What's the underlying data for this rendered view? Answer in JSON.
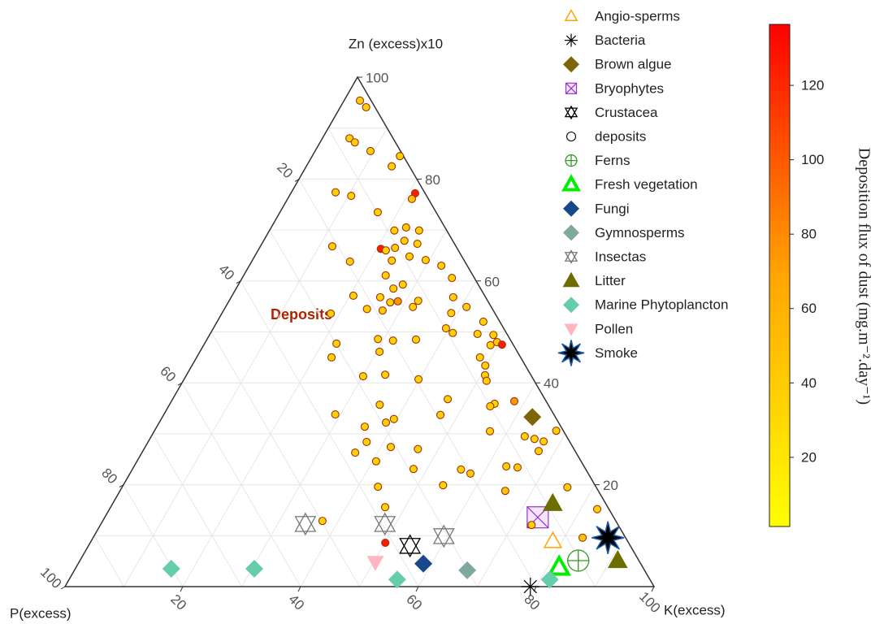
{
  "chart_data": {
    "type": "ternary",
    "top_label": "Zn (excess)x10",
    "left_label": "P(excess)",
    "right_label": "K(excess)",
    "annotation": "Deposits",
    "annotation_color": "#b22200",
    "zn_ticks": [
      20,
      40,
      60,
      80,
      100
    ],
    "p_ticks": [
      20,
      40,
      60,
      80,
      100
    ],
    "k_ticks": [
      20,
      40,
      60,
      80,
      100
    ],
    "grid": [
      10,
      20,
      30,
      40,
      50,
      60,
      70,
      80,
      90
    ],
    "colorbar": {
      "title": "Deposition flux of dust (mg.m⁻².day⁻¹)",
      "clim": [
        1.4,
        136.4
      ],
      "ticks": [
        20,
        40,
        60,
        80,
        100,
        120
      ],
      "colors": [
        "#ffff00",
        "#ffa500",
        "#ff0000"
      ]
    },
    "series": [
      {
        "name": "Angio-sperms",
        "marker": "triangle-open",
        "color": "#ffa500",
        "k": [
          78.4
        ],
        "zn": [
          8.9
        ]
      },
      {
        "name": "Bacteria",
        "marker": "asterisk",
        "color": "#000000",
        "k": [
          79
        ],
        "zn": [
          0
        ]
      },
      {
        "name": "Brown algue",
        "marker": "diamond",
        "color": "#7d6608",
        "k": [
          62.8
        ],
        "zn": [
          33.3
        ]
      },
      {
        "name": "Bryophytes",
        "marker": "square-x",
        "color": "#9932cc",
        "k": [
          73.5
        ],
        "zn": [
          13.6
        ]
      },
      {
        "name": "Crustacea",
        "marker": "hexagram",
        "color": "#000000",
        "k": [
          54.6
        ],
        "zn": [
          8.0
        ]
      },
      {
        "name": "deposits",
        "marker": "circle",
        "color": "#000000",
        "k": [
          2.7,
          4.4,
          4.6,
          5.9,
          9.4,
          14.9,
          14.5,
          7.5,
          10.5,
          21.1,
          21.1,
          16.6,
          21.2,
          22.9,
          25.4,
          12.2,
          20.7,
          21.7,
          23.0,
          23.9,
          26.4,
          16.7,
          26.3,
          23.7,
          29.4,
          32.6,
          35.6,
          24.1,
          26.7,
          27.9,
          27.5,
          28.7,
          25.3,
          32.1,
          31.8,
          24.2,
          20.6,
          37.7,
          38.9,
          40.9,
          45.2,
          27.0,
          45.4,
          18.5,
          39.5,
          41.1,
          48.2,
          22.4,
          29.0,
          31.7,
          35.5,
          48.7,
          49.5,
          50.6,
          22.9,
          30.5,
          48.1,
          49.8,
          30.1,
          33.7,
          50.7,
          51.5,
          39.8,
          58.2,
          46.7,
          55.1,
          54.6,
          29.1,
          35.7,
          39.5,
          38.5,
          47.0,
          57.0,
          63.4,
          65.3,
          67.1,
          67.2,
          68.2,
          35.3,
          37.1,
          36.2,
          41.7,
          46.5,
          40.6,
          55.8,
          57.8,
          63.2,
          65.2,
          54.3,
          47.7,
          43.4,
          65.4,
          75.6,
          82.8,
          73.2,
          83.1,
          46.6,
          37.3,
          50.1
        ],
        "zn": [
          95.4,
          94.1,
          88.0,
          87.2,
          85.5,
          84.5,
          82.5,
          77.4,
          76.7,
          77.2,
          76.1,
          73.5,
          69.9,
          70.5,
          69.9,
          66.8,
          66.3,
          66.0,
          66.5,
          67.9,
          67.3,
          63.8,
          64.8,
          64.0,
          64.1,
          63.0,
          60.6,
          61.1,
          58.5,
          59.3,
          55.8,
          56.0,
          56.8,
          56.1,
          54.9,
          54.5,
          57.1,
          56.8,
          53.7,
          54.9,
          52.0,
          54.2,
          49.6,
          53.6,
          50.7,
          49.8,
          49.4,
          47.7,
          48.6,
          48.3,
          48.5,
          47.4,
          48.0,
          47.5,
          45.0,
          46.1,
          45.0,
          43.4,
          41.3,
          41.6,
          41.5,
          40.4,
          40.7,
          36.4,
          36.8,
          35.9,
          35.4,
          33.8,
          35.7,
          32.9,
          32.2,
          33.7,
          30.5,
          29.5,
          29.0,
          28.5,
          26.6,
          30.6,
          31.4,
          28.4,
          26.3,
          27.4,
          27.0,
          24.6,
          23.0,
          22.2,
          23.6,
          23.4,
          19.9,
          23.1,
          19.6,
          18.8,
          19.5,
          15.2,
          12.1,
          9.6,
          15.6,
          12.9,
          8.6
        ],
        "flux": [
          35,
          35,
          35,
          35,
          35,
          35,
          35,
          35,
          35,
          125,
          45,
          35,
          35,
          40,
          35,
          35,
          125,
          35,
          40,
          35,
          35,
          35,
          35,
          35,
          35,
          35,
          35,
          35,
          35,
          35,
          35,
          75,
          35,
          35,
          35,
          35,
          35,
          35,
          35,
          35,
          35,
          40,
          35,
          35,
          35,
          35,
          35,
          35,
          35,
          35,
          35,
          35,
          40,
          125,
          35,
          35,
          35,
          35,
          35,
          35,
          35,
          35,
          35,
          75,
          35,
          35,
          35,
          35,
          35,
          35,
          35,
          35,
          35,
          35,
          35,
          35,
          35,
          35,
          35,
          35,
          35,
          35,
          35,
          35,
          35,
          40,
          35,
          40,
          35,
          35,
          35,
          45,
          35,
          35,
          35,
          45,
          35,
          35,
          125
        ]
      },
      {
        "name": "Ferns",
        "marker": "circle-plus",
        "color": "#339922",
        "k": [
          84.6
        ],
        "zn": [
          5.1
        ]
      },
      {
        "name": "Fresh vegetation",
        "marker": "triangle-thick",
        "color": "#00ee00",
        "k": [
          82
        ],
        "zn": [
          3.8
        ]
      },
      {
        "name": "Fungi",
        "marker": "diamond",
        "color": "#17488a",
        "k": [
          58.6
        ],
        "zn": [
          4.5
        ]
      },
      {
        "name": "Gymnosperms",
        "marker": "diamond",
        "color": "#7fa8a0",
        "k": [
          66.7
        ],
        "zn": [
          3.2
        ]
      },
      {
        "name": "Insectas",
        "marker": "hexagram",
        "color": "#777777",
        "k": [
          34.7,
          48.2,
          59.4
        ],
        "zn": [
          12.3,
          12.3,
          9.9
        ]
      },
      {
        "name": "Litter",
        "marker": "triangle",
        "color": "#6e6e00",
        "k": [
          74.7,
          91.3
        ],
        "zn": [
          16.3,
          5.1
        ]
      },
      {
        "name": "Marine Phytoplancton",
        "marker": "diamond",
        "color": "#66cdaa",
        "k": [
          16.3,
          30.4,
          55.7,
          81.6
        ],
        "zn": [
          3.5,
          3.5,
          1.4,
          1.4
        ]
      },
      {
        "name": "Pollen",
        "marker": "triangle-down",
        "color": "#ffb6c1",
        "k": [
          50.3
        ],
        "zn": [
          4.8
        ]
      },
      {
        "name": "Smoke",
        "marker": "star",
        "color": "#000000",
        "k": [
          87.4
        ],
        "zn": [
          9.6
        ]
      }
    ]
  }
}
